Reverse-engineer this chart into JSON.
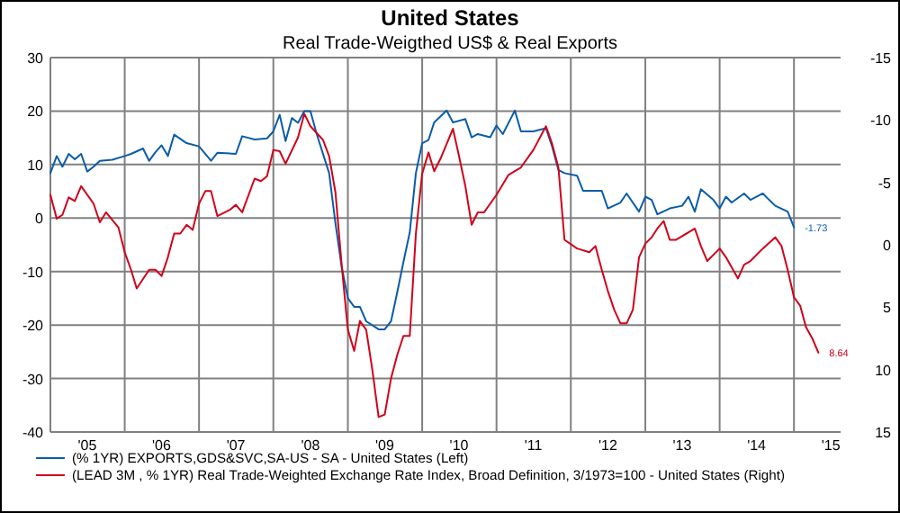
{
  "chart_data": {
    "type": "line",
    "title": "United States",
    "subtitle": "Real Trade-Weigthed US$ & Real Exports",
    "xlim": [
      "2005-01-01",
      "2015-08-18"
    ],
    "xticks": [
      {
        "value": "2005",
        "label": null
      },
      {
        "value": "2005-07",
        "label": "'05"
      },
      {
        "value": "2006",
        "label": null
      },
      {
        "value": "2006-07",
        "label": "'06"
      },
      {
        "value": "2007",
        "label": null
      },
      {
        "value": "2007-07",
        "label": "'07"
      },
      {
        "value": "2008",
        "label": null
      },
      {
        "value": "2008-07",
        "label": "'08"
      },
      {
        "value": "2009",
        "label": null
      },
      {
        "value": "2009-07",
        "label": "'09"
      },
      {
        "value": "2010",
        "label": null
      },
      {
        "value": "2010-07",
        "label": "'10"
      },
      {
        "value": "2011",
        "label": null
      },
      {
        "value": "2011-07",
        "label": "'11"
      },
      {
        "value": "2012",
        "label": null
      },
      {
        "value": "2012-07",
        "label": "'12"
      },
      {
        "value": "2013",
        "label": null
      },
      {
        "value": "2013-07",
        "label": "'13"
      },
      {
        "value": "2014",
        "label": null
      },
      {
        "value": "2014-07",
        "label": "'14"
      },
      {
        "value": "2015",
        "label": null
      },
      {
        "value": "2015-07",
        "label": "'15"
      }
    ],
    "ylim": [
      -40,
      30
    ],
    "yticks": [
      -40,
      -30,
      -20,
      -10,
      0,
      10,
      20,
      30
    ],
    "y2lim": [
      15,
      -15
    ],
    "y2ticks": [
      -15,
      -10,
      -5,
      0,
      5,
      10,
      15
    ],
    "grid": true,
    "legend": "bottom",
    "series": [
      {
        "name": "(% 1YR) EXPORTS,GDS&SVC,SA-US - SA - United States  (Left)",
        "color": "#0a5ca8",
        "axis": "y",
        "x": [
          "2005-01",
          "2005-02",
          "2005-03",
          "2005-04",
          "2005-05",
          "2005-06",
          "2005-07",
          "2005-08",
          "2005-09",
          "2005-11",
          "2006-01",
          "2006-02",
          "2006-04",
          "2006-05",
          "2006-06",
          "2006-07",
          "2006-08",
          "2006-09",
          "2006-11",
          "2007-01",
          "2007-03",
          "2007-04",
          "2007-07",
          "2007-08",
          "2007-10",
          "2007-12",
          "2008-01",
          "2008-02",
          "2008-03",
          "2008-04",
          "2008-05",
          "2008-06",
          "2008-07",
          "2008-08",
          "2008-10",
          "2008-11",
          "2008-12",
          "2009-01",
          "2009-02",
          "2009-03",
          "2009-04",
          "2009-06",
          "2009-07",
          "2009-08",
          "2009-09",
          "2009-10",
          "2009-11",
          "2009-12",
          "2010-01",
          "2010-02",
          "2010-03",
          "2010-05",
          "2010-06",
          "2010-08",
          "2010-09",
          "2010-10",
          "2010-12",
          "2011-01",
          "2011-02",
          "2011-04",
          "2011-05",
          "2011-07",
          "2011-09",
          "2011-10",
          "2011-11",
          "2011-12",
          "2012-02",
          "2012-03",
          "2012-05",
          "2012-06",
          "2012-07",
          "2012-09",
          "2012-10",
          "2012-12",
          "2013-01",
          "2013-02",
          "2013-03",
          "2013-05",
          "2013-07",
          "2013-08",
          "2013-09",
          "2013-10",
          "2013-12",
          "2014-01",
          "2014-02",
          "2014-03",
          "2014-05",
          "2014-06",
          "2014-08",
          "2014-09",
          "2014-10",
          "2014-12",
          "2015-01"
        ],
        "values": [
          8.4,
          11.6,
          9.6,
          12,
          11,
          12,
          8.7,
          9.6,
          10.7,
          10.9,
          11.6,
          12,
          13,
          10.7,
          12.3,
          13.6,
          11.6,
          15.6,
          14,
          13.4,
          10.7,
          12.2,
          12,
          15.3,
          14.7,
          14.9,
          16.2,
          19.3,
          14.4,
          18.7,
          17.8,
          20,
          20,
          15.7,
          8.4,
          -1,
          -9,
          -15,
          -16.6,
          -16.6,
          -19.3,
          -20.8,
          -20.8,
          -19.3,
          -13.8,
          -8.2,
          -2.7,
          8.4,
          14,
          14.6,
          17.9,
          20.1,
          17.9,
          18.5,
          15.1,
          15.7,
          15.1,
          17.3,
          15.7,
          20.1,
          16.2,
          16.2,
          16.8,
          13.4,
          9,
          8.4,
          7.9,
          5.1,
          5.1,
          5.1,
          1.8,
          2.9,
          4.6,
          1.2,
          4,
          3.4,
          0.7,
          1.8,
          2.3,
          4,
          1.2,
          5.4,
          3.4,
          1.8,
          4,
          2.9,
          4.6,
          3.4,
          4.6,
          3.4,
          2.3,
          1.2,
          -1.73
        ],
        "value_labels": [
          null,
          null,
          null,
          null,
          null,
          null,
          null,
          null,
          null,
          null,
          null,
          null,
          null,
          null,
          null,
          null,
          null,
          null,
          null,
          null,
          null,
          null,
          null,
          null,
          null,
          null,
          null,
          null,
          null,
          null,
          null,
          null,
          null,
          null,
          null,
          null,
          null,
          null,
          null,
          null,
          null,
          null,
          null,
          null,
          null,
          null,
          null,
          null,
          null,
          null,
          null,
          null,
          null,
          null,
          null,
          null,
          null,
          null,
          null,
          null,
          null,
          null,
          null,
          null,
          null,
          null,
          null,
          null,
          null,
          null,
          null,
          null,
          null,
          null,
          null,
          null,
          null,
          null,
          null,
          null,
          null,
          null,
          null,
          null,
          null,
          null,
          null,
          null,
          null,
          null,
          null,
          null,
          "-1.73"
        ]
      },
      {
        "name": "(LEAD 3M , % 1YR) Real Trade-Weighted Exchange Rate Index, Broad Definition, 3/1973=100 - United States  (Right)",
        "color": "#d0021b",
        "axis": "y2",
        "x": [
          "2005-01",
          "2005-02",
          "2005-03",
          "2005-04",
          "2005-05",
          "2005-06",
          "2005-08",
          "2005-09",
          "2005-10",
          "2005-12",
          "2006-01",
          "2006-02",
          "2006-03",
          "2006-05",
          "2006-06",
          "2006-07",
          "2006-08",
          "2006-09",
          "2006-10",
          "2006-11",
          "2006-12",
          "2007-01",
          "2007-02",
          "2007-03",
          "2007-04",
          "2007-06",
          "2007-07",
          "2007-08",
          "2007-10",
          "2007-11",
          "2007-12",
          "2008-01",
          "2008-02",
          "2008-03",
          "2008-05",
          "2008-06",
          "2008-07",
          "2008-09",
          "2008-10",
          "2008-11",
          "2008-12",
          "2009-01",
          "2009-02",
          "2009-03",
          "2009-04",
          "2009-05",
          "2009-06",
          "2009-07",
          "2009-08",
          "2009-09",
          "2009-10",
          "2009-11",
          "2009-12",
          "2010-01",
          "2010-02",
          "2010-03",
          "2010-04",
          "2010-06",
          "2010-07",
          "2010-08",
          "2010-09",
          "2010-10",
          "2010-11",
          "2011-01",
          "2011-03",
          "2011-05",
          "2011-07",
          "2011-09",
          "2011-10",
          "2011-11",
          "2011-12",
          "2012-02",
          "2012-04",
          "2012-05",
          "2012-06",
          "2012-07",
          "2012-08",
          "2012-09",
          "2012-10",
          "2012-11",
          "2012-12",
          "2013-01",
          "2013-02",
          "2013-03",
          "2013-04",
          "2013-05",
          "2013-06",
          "2013-09",
          "2013-10",
          "2013-11",
          "2014-01",
          "2014-02",
          "2014-04",
          "2014-05",
          "2014-06",
          "2014-08",
          "2014-10",
          "2014-11",
          "2014-12",
          "2015-01",
          "2015-02",
          "2015-03",
          "2015-04",
          "2015-05"
        ],
        "values": [
          -4,
          -2.1,
          -2.4,
          -3.8,
          -3.5,
          -4.7,
          -3.3,
          -1.8,
          -2.6,
          -1.4,
          0.6,
          2,
          3.5,
          2,
          2,
          2.5,
          1,
          -0.9,
          -0.9,
          -1.6,
          -1.2,
          -3.3,
          -4.3,
          -4.3,
          -2.3,
          -2.8,
          -3.2,
          -2.6,
          -5.3,
          -5.1,
          -5.5,
          -7.6,
          -7.5,
          -6.5,
          -8.6,
          -10.5,
          -9.5,
          -8.4,
          -7.1,
          -4.2,
          1.5,
          6.8,
          8.5,
          6.1,
          6.8,
          10,
          13.8,
          13.6,
          10.7,
          8.8,
          7.3,
          7.3,
          -0.9,
          -5.7,
          -7.4,
          -5.9,
          -6.9,
          -9.3,
          -7.1,
          -4.7,
          -1.6,
          -2.6,
          -2.6,
          -4,
          -5.6,
          -6.2,
          -7.6,
          -9.5,
          -8.1,
          -6.2,
          -0.4,
          0.3,
          0.6,
          0.1,
          2,
          3.7,
          5.2,
          6.3,
          6.3,
          5.2,
          1,
          -0.1,
          -0.6,
          -1.3,
          -1.9,
          -0.4,
          -0.4,
          -1.3,
          0.1,
          1.3,
          0.3,
          1,
          2.7,
          1.6,
          1.3,
          0.3,
          -0.6,
          0.1,
          2,
          4.2,
          4.9,
          6.6,
          7.5,
          8.64
        ],
        "value_labels": [
          null,
          null,
          null,
          null,
          null,
          null,
          null,
          null,
          null,
          null,
          null,
          null,
          null,
          null,
          null,
          null,
          null,
          null,
          null,
          null,
          null,
          null,
          null,
          null,
          null,
          null,
          null,
          null,
          null,
          null,
          null,
          null,
          null,
          null,
          null,
          null,
          null,
          null,
          null,
          null,
          null,
          null,
          null,
          null,
          null,
          null,
          null,
          null,
          null,
          null,
          null,
          null,
          null,
          null,
          null,
          null,
          null,
          null,
          null,
          null,
          null,
          null,
          null,
          null,
          null,
          null,
          null,
          null,
          null,
          null,
          null,
          null,
          null,
          null,
          null,
          null,
          null,
          null,
          null,
          null,
          null,
          null,
          null,
          null,
          null,
          null,
          null,
          null,
          null,
          null,
          null,
          null,
          null,
          null,
          null,
          null,
          null,
          null,
          null,
          null,
          null,
          null,
          null,
          "8.64"
        ]
      }
    ]
  }
}
